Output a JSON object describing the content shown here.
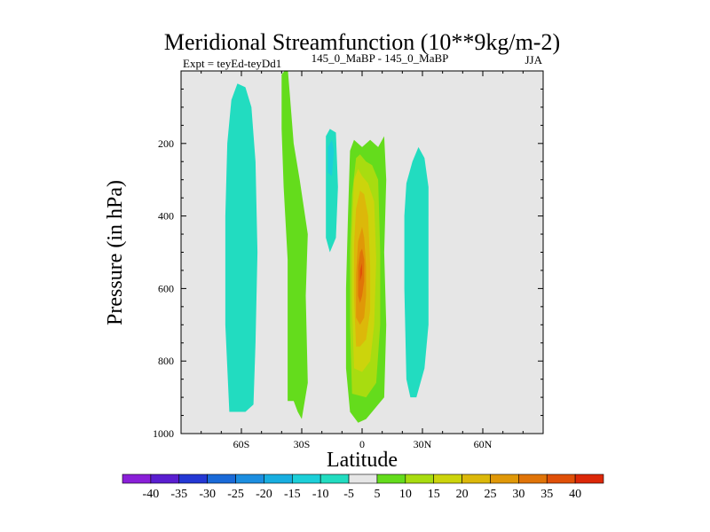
{
  "chart_data": {
    "type": "contour",
    "title": "Meridional Streamfunction (10**9kg/m-2)",
    "subtitle_left": "Expt = teyEd-teyDd1",
    "subtitle_center": "145_0_MaBP - 145_0_MaBP",
    "subtitle_right": "JJA",
    "xlabel": "Latitude",
    "ylabel": "Pressure (in hPa)",
    "xlim": [
      -90,
      90
    ],
    "ylim": [
      0,
      1000
    ],
    "x_ticks": [
      {
        "value": -60,
        "label": "60S"
      },
      {
        "value": -30,
        "label": "30S"
      },
      {
        "value": 0,
        "label": "0"
      },
      {
        "value": 30,
        "label": "30N"
      },
      {
        "value": 60,
        "label": "60N"
      }
    ],
    "y_ticks": [
      {
        "value": 200,
        "label": "200"
      },
      {
        "value": 400,
        "label": "400"
      },
      {
        "value": 600,
        "label": "600"
      },
      {
        "value": 800,
        "label": "800"
      },
      {
        "value": 1000,
        "label": "1000"
      }
    ],
    "background_color": "#e6e6e6",
    "colorbar": {
      "labels": [
        "-40",
        "-35",
        "-30",
        "-25",
        "-20",
        "-15",
        "-10",
        "-5",
        "5",
        "10",
        "15",
        "20",
        "25",
        "30",
        "35",
        "40"
      ],
      "colors": [
        "#8a1fd8",
        "#5a1ed0",
        "#2438d4",
        "#1a6ad8",
        "#1c8ee0",
        "#18aee0",
        "#1ccfd8",
        "#22dcc0",
        "#e6e6e6",
        "#64dc1c",
        "#a8dc10",
        "#ccd40c",
        "#dcb80a",
        "#e09808",
        "#e07408",
        "#e05008",
        "#dc2808"
      ]
    },
    "regions": [
      {
        "name": "southern-hemisphere-cell",
        "level": "-10 to -5",
        "color": "#22dcc0",
        "outline": [
          [
            -66,
            940
          ],
          [
            -68,
            700
          ],
          [
            -68,
            400
          ],
          [
            -67,
            200
          ],
          [
            -65,
            80
          ],
          [
            -62,
            35
          ],
          [
            -58,
            45
          ],
          [
            -55,
            100
          ],
          [
            -53,
            250
          ],
          [
            -52,
            500
          ],
          [
            -53,
            750
          ],
          [
            -54,
            920
          ],
          [
            -58,
            940
          ]
        ]
      },
      {
        "name": "band-30s",
        "level": "5 to 10",
        "color": "#64dc1c",
        "outline": [
          [
            -40,
            10
          ],
          [
            -40,
            160
          ],
          [
            -39,
            320
          ],
          [
            -37,
            520
          ],
          [
            -37,
            760
          ],
          [
            -37,
            910
          ],
          [
            -34,
            910
          ],
          [
            -32,
            940
          ],
          [
            -30,
            960
          ],
          [
            -27,
            860
          ],
          [
            -28,
            620
          ],
          [
            -27,
            450
          ],
          [
            -31,
            300
          ],
          [
            -34,
            200
          ],
          [
            -36,
            60
          ],
          [
            -37,
            -10
          ]
        ]
      },
      {
        "name": "band-15s",
        "level": "-10 to -5",
        "color": "#22dcc0",
        "outline": [
          [
            -18,
            460
          ],
          [
            -18,
            320
          ],
          [
            -18,
            180
          ],
          [
            -16,
            160
          ],
          [
            -13,
            170
          ],
          [
            -12,
            320
          ],
          [
            -13,
            460
          ],
          [
            -16,
            500
          ]
        ]
      },
      {
        "name": "band-15s-core",
        "level": "-15 to -10",
        "color": "#1ccfd8",
        "outline": [
          [
            -17,
            280
          ],
          [
            -17,
            210
          ],
          [
            -15,
            190
          ],
          [
            -14,
            220
          ],
          [
            -15,
            290
          ]
        ]
      },
      {
        "name": "tropical-cell-outer",
        "level": "5 to 10",
        "color": "#64dc1c",
        "outline": [
          [
            -6,
            940
          ],
          [
            -8,
            820
          ],
          [
            -8,
            600
          ],
          [
            -7,
            400
          ],
          [
            -6,
            220
          ],
          [
            -4,
            190
          ],
          [
            0,
            210
          ],
          [
            4,
            190
          ],
          [
            8,
            210
          ],
          [
            11,
            180
          ],
          [
            12,
            300
          ],
          [
            11,
            500
          ],
          [
            12,
            700
          ],
          [
            11,
            900
          ],
          [
            8,
            920
          ],
          [
            5,
            940
          ],
          [
            2,
            960
          ],
          [
            -2,
            970
          ]
        ]
      },
      {
        "name": "tropical-cell-15",
        "level": "10 to 15",
        "color": "#a8dc10",
        "outline": [
          [
            -5,
            890
          ],
          [
            -6,
            700
          ],
          [
            -6,
            500
          ],
          [
            -5,
            340
          ],
          [
            -3,
            240
          ],
          [
            -1,
            230
          ],
          [
            2,
            250
          ],
          [
            5,
            260
          ],
          [
            8,
            300
          ],
          [
            9,
            500
          ],
          [
            9,
            700
          ],
          [
            7,
            860
          ],
          [
            2,
            900
          ]
        ]
      },
      {
        "name": "tropical-cell-20",
        "level": "15 to 20",
        "color": "#ccd40c",
        "outline": [
          [
            -4,
            820
          ],
          [
            -5,
            650
          ],
          [
            -5,
            450
          ],
          [
            -4,
            300
          ],
          [
            -2,
            270
          ],
          [
            0,
            290
          ],
          [
            3,
            310
          ],
          [
            6,
            360
          ],
          [
            7,
            520
          ],
          [
            6,
            700
          ],
          [
            4,
            800
          ],
          [
            0,
            830
          ]
        ]
      },
      {
        "name": "tropical-cell-25",
        "level": "20 to 25",
        "color": "#dcb80a",
        "outline": [
          [
            -3,
            760
          ],
          [
            -4,
            620
          ],
          [
            -4,
            480
          ],
          [
            -3,
            380
          ],
          [
            -1,
            330
          ],
          [
            1,
            340
          ],
          [
            3,
            400
          ],
          [
            4,
            540
          ],
          [
            4,
            660
          ],
          [
            2,
            740
          ],
          [
            -1,
            760
          ]
        ]
      },
      {
        "name": "tropical-cell-30",
        "level": "25 to 30",
        "color": "#e09808",
        "outline": [
          [
            -3,
            680
          ],
          [
            -3,
            560
          ],
          [
            -2,
            470
          ],
          [
            0,
            430
          ],
          [
            1,
            460
          ],
          [
            2,
            540
          ],
          [
            2,
            620
          ],
          [
            1,
            680
          ],
          [
            -1,
            700
          ]
        ]
      },
      {
        "name": "tropical-cell-35",
        "level": "30 to 35",
        "color": "#e07408",
        "outline": [
          [
            -2,
            620
          ],
          [
            -2,
            540
          ],
          [
            -1,
            500
          ],
          [
            0,
            490
          ],
          [
            1,
            520
          ],
          [
            1,
            580
          ],
          [
            0,
            620
          ],
          [
            -1,
            640
          ]
        ]
      },
      {
        "name": "tropical-cell-40",
        "level": "35 to 40",
        "color": "#e05008",
        "outline": [
          [
            -1,
            580
          ],
          [
            -1,
            550
          ],
          [
            0,
            530
          ],
          [
            0,
            560
          ]
        ]
      },
      {
        "name": "northern-hemisphere-cell",
        "level": "-10 to -5",
        "color": "#22dcc0",
        "outline": [
          [
            22,
            850
          ],
          [
            21,
            600
          ],
          [
            21,
            400
          ],
          [
            22,
            310
          ],
          [
            25,
            250
          ],
          [
            28,
            210
          ],
          [
            31,
            240
          ],
          [
            33,
            320
          ],
          [
            33,
            500
          ],
          [
            33,
            700
          ],
          [
            31,
            820
          ],
          [
            27,
            900
          ],
          [
            24,
            900
          ]
        ]
      }
    ]
  }
}
